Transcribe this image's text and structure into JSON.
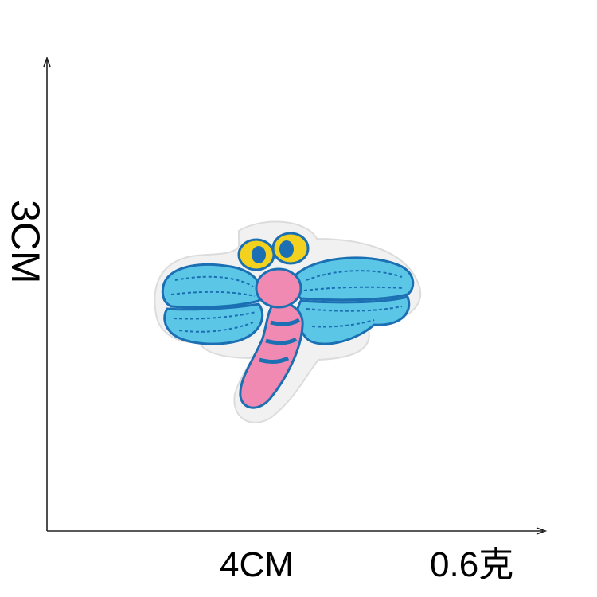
{
  "dimensions": {
    "height": "3CM",
    "width": "4CM",
    "weight": "0.6克"
  },
  "colors": {
    "axis": "#222222",
    "wing": "#5cc6e6",
    "wing_stitch": "#1b6fb3",
    "body": "#f08ab3",
    "eye": "#f2d11f",
    "felt": "#eeeeee"
  },
  "icons": {
    "patch": "dragonfly-patch-icon"
  }
}
